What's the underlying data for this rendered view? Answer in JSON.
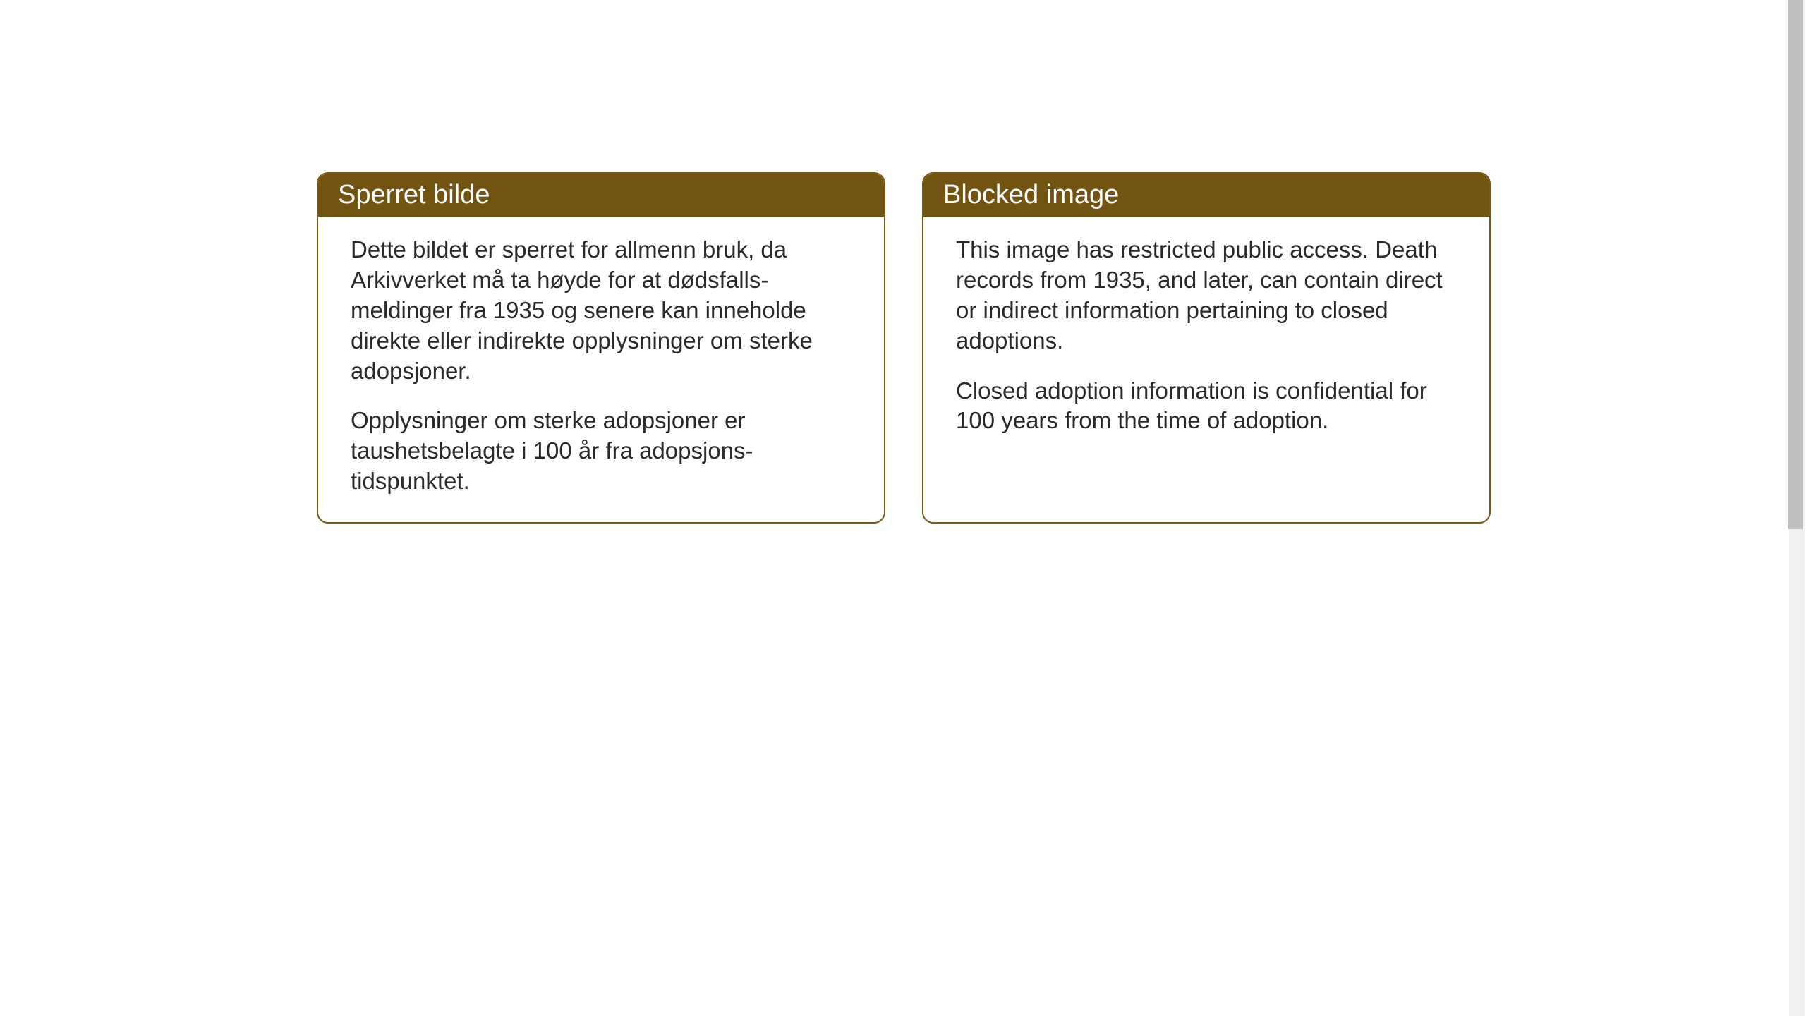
{
  "layout": {
    "background_color": "#ffffff",
    "card_border_color": "#7a5a14",
    "card_border_radius": 16,
    "header_bg_color": "#715412",
    "header_text_color": "#ffffff",
    "body_text_color": "#2a2a2a",
    "header_fontsize": 38,
    "body_fontsize": 33
  },
  "cards": {
    "norwegian": {
      "header": "Sperret bilde",
      "paragraph1": "Dette bildet er sperret for allmenn bruk, da Arkivverket må ta høyde for at dødsfalls-meldinger fra 1935 og senere kan inneholde direkte eller indirekte opplysninger om sterke adopsjoner.",
      "paragraph2": "Opplysninger om sterke adopsjoner er taushetsbelagte i 100 år fra adopsjons-tidspunktet."
    },
    "english": {
      "header": "Blocked image",
      "paragraph1": "This image has restricted public access. Death records from 1935, and later, can contain direct or indirect information pertaining to closed adoptions.",
      "paragraph2": "Closed adoption information is confidential for 100 years from the time of adoption."
    }
  }
}
